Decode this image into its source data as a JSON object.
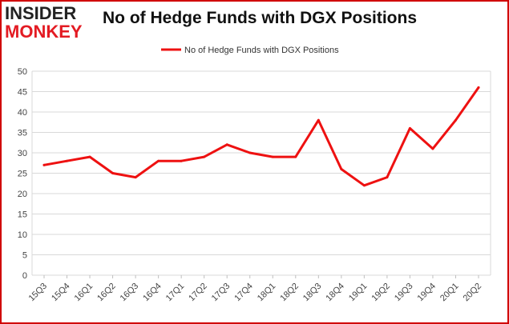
{
  "logo": {
    "line1": "INSIDER",
    "line2": "MONKEY"
  },
  "chart_data": {
    "type": "line",
    "title": "No of Hedge Funds with DGX Positions",
    "categories": [
      "15Q3",
      "15Q4",
      "16Q1",
      "16Q2",
      "16Q3",
      "16Q4",
      "17Q1",
      "17Q2",
      "17Q3",
      "17Q4",
      "18Q1",
      "18Q2",
      "18Q3",
      "18Q4",
      "19Q1",
      "19Q2",
      "19Q3",
      "19Q4",
      "20Q1",
      "20Q2"
    ],
    "series": [
      {
        "name": "No of Hedge Funds with DGX Positions",
        "values": [
          27,
          28,
          29,
          25,
          24,
          28,
          28,
          29,
          32,
          30,
          29,
          29,
          38,
          26,
          22,
          24,
          36,
          31,
          38,
          46
        ],
        "color": "#ee1111"
      }
    ],
    "ylim": [
      0,
      50
    ],
    "yticks": [
      0,
      5,
      10,
      15,
      20,
      25,
      30,
      35,
      40,
      45,
      50
    ],
    "xlabel": "",
    "ylabel": "",
    "grid": true,
    "legend": "top-center",
    "frame_color": "#d00000"
  }
}
